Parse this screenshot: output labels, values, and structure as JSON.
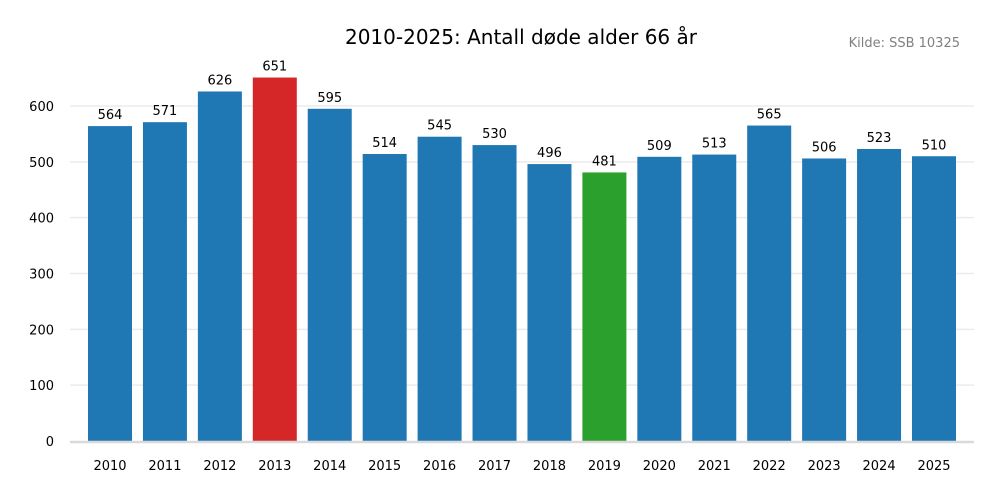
{
  "chart_data": {
    "type": "bar",
    "title": "2010-2025: Antall døde alder 66 år",
    "source": "Kilde: SSB 10325",
    "xlabel": "",
    "ylabel": "",
    "ylim": [
      0,
      660
    ],
    "yticks": [
      0,
      100,
      200,
      300,
      400,
      500,
      600
    ],
    "grid": true,
    "categories": [
      "2010",
      "2011",
      "2012",
      "2013",
      "2014",
      "2015",
      "2016",
      "2017",
      "2018",
      "2019",
      "2020",
      "2021",
      "2022",
      "2023",
      "2024",
      "2025"
    ],
    "values": [
      564,
      571,
      626,
      651,
      595,
      514,
      545,
      530,
      496,
      481,
      509,
      513,
      565,
      506,
      523,
      510
    ],
    "colors": {
      "default": "#1f77b4",
      "max": "#d62728",
      "min": "#2ca02c",
      "grid": "#ebebeb",
      "axis": "#d9d9d9"
    },
    "highlights": {
      "max": "2013",
      "min": "2019"
    }
  }
}
